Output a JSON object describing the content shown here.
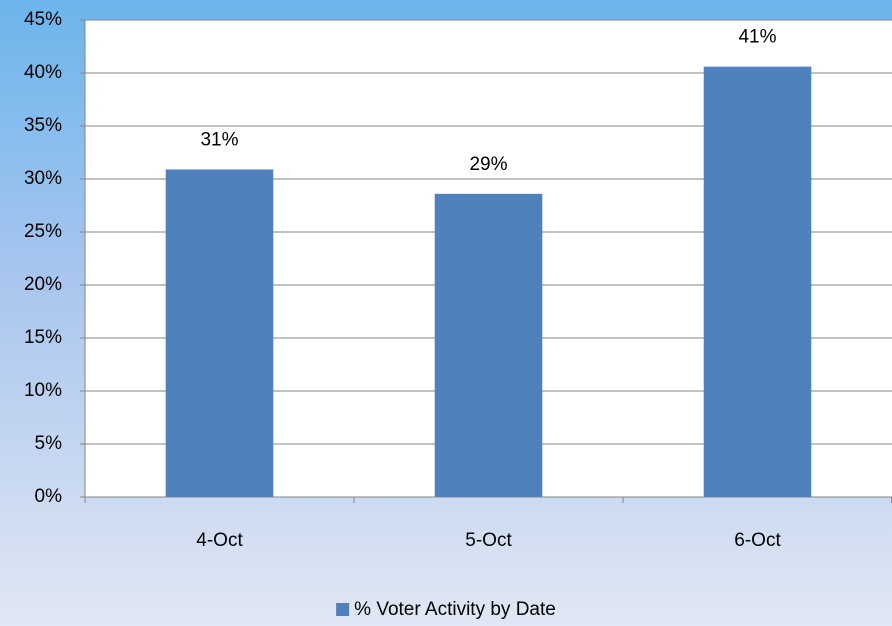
{
  "chart_data": {
    "type": "bar",
    "categories": [
      "4-Oct",
      "5-Oct",
      "6-Oct"
    ],
    "series": [
      {
        "name": "% Voter Activity by Date",
        "color": "#4f81bd",
        "values": [
          30.9,
          28.6,
          40.6
        ],
        "value_labels": [
          "31%",
          "29%",
          "41%"
        ]
      }
    ],
    "ylim": [
      0,
      45
    ],
    "yticks": [
      {
        "value": 0,
        "label": "0%"
      },
      {
        "value": 5,
        "label": "5%"
      },
      {
        "value": 10,
        "label": "10%"
      },
      {
        "value": 15,
        "label": "15%"
      },
      {
        "value": 20,
        "label": "20%"
      },
      {
        "value": 25,
        "label": "25%"
      },
      {
        "value": 30,
        "label": "30%"
      },
      {
        "value": 35,
        "label": "35%"
      },
      {
        "value": 40,
        "label": "40%"
      },
      {
        "value": 45,
        "label": "45%"
      }
    ],
    "grid": true,
    "legend": "bottom"
  }
}
